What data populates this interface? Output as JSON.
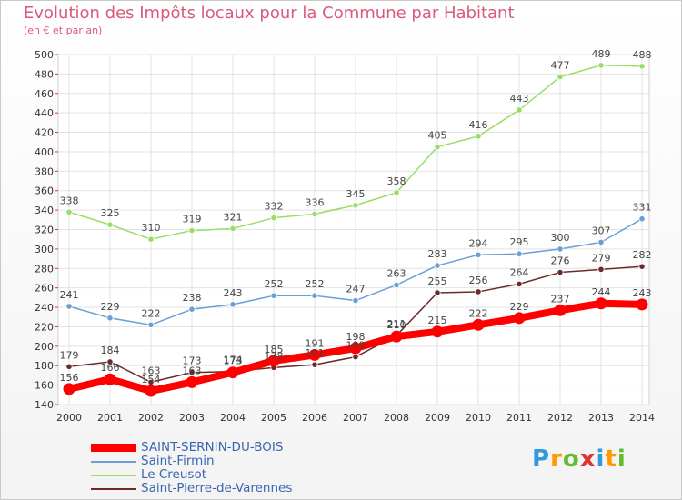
{
  "chart_data": {
    "type": "line",
    "title": "Evolution des Impôts locaux pour la Commune par Habitant",
    "subtitle": "(en € et par an)",
    "xlabel": "",
    "ylabel": "",
    "ylim": [
      140,
      500
    ],
    "yticks": [
      140,
      160,
      180,
      200,
      220,
      240,
      260,
      280,
      300,
      320,
      340,
      360,
      380,
      400,
      420,
      440,
      460,
      480,
      500
    ],
    "categories": [
      "2000",
      "2001",
      "2002",
      "2003",
      "2004",
      "2005",
      "2006",
      "2007",
      "2008",
      "2009",
      "2010",
      "2011",
      "2012",
      "2013",
      "2014"
    ],
    "grid": true,
    "legend_position": "bottom-left",
    "series": [
      {
        "name": "SAINT-SERNIN-DU-BOIS",
        "color": "#ff0000",
        "values": [
          156,
          166,
          154,
          163,
          173,
          185,
          191,
          198,
          210,
          215,
          222,
          229,
          237,
          244,
          243
        ]
      },
      {
        "name": "Saint-Firmin",
        "color": "#6b9fd4",
        "values": [
          241,
          229,
          222,
          238,
          243,
          252,
          252,
          247,
          263,
          283,
          294,
          295,
          300,
          307,
          331
        ]
      },
      {
        "name": "Le Creusot",
        "color": "#99dd66",
        "values": [
          338,
          325,
          310,
          319,
          321,
          332,
          336,
          345,
          358,
          405,
          416,
          443,
          477,
          489,
          488
        ]
      },
      {
        "name": "Saint-Pierre-de-Varennes",
        "color": "#6b2a2a",
        "values": [
          179,
          184,
          163,
          173,
          174,
          178,
          181,
          189,
          211,
          255,
          256,
          264,
          276,
          279,
          282
        ]
      }
    ]
  },
  "legend": [
    {
      "label": "SAINT-SERNIN-DU-BOIS",
      "color": "#ff0000"
    },
    {
      "label": "Saint-Firmin",
      "color": "#6b9fd4"
    },
    {
      "label": "Le Creusot",
      "color": "#99dd66"
    },
    {
      "label": "Saint-Pierre-de-Varennes",
      "color": "#6b2a2a"
    }
  ],
  "logo": {
    "text": "Proxiti",
    "letters": [
      "P",
      "r",
      "o",
      "x",
      "i",
      "t",
      "i"
    ],
    "colors": [
      "#3399dd",
      "#ff9900",
      "#66bb33",
      "#dd3333",
      "#3399dd",
      "#ff9900",
      "#66bb33"
    ]
  }
}
